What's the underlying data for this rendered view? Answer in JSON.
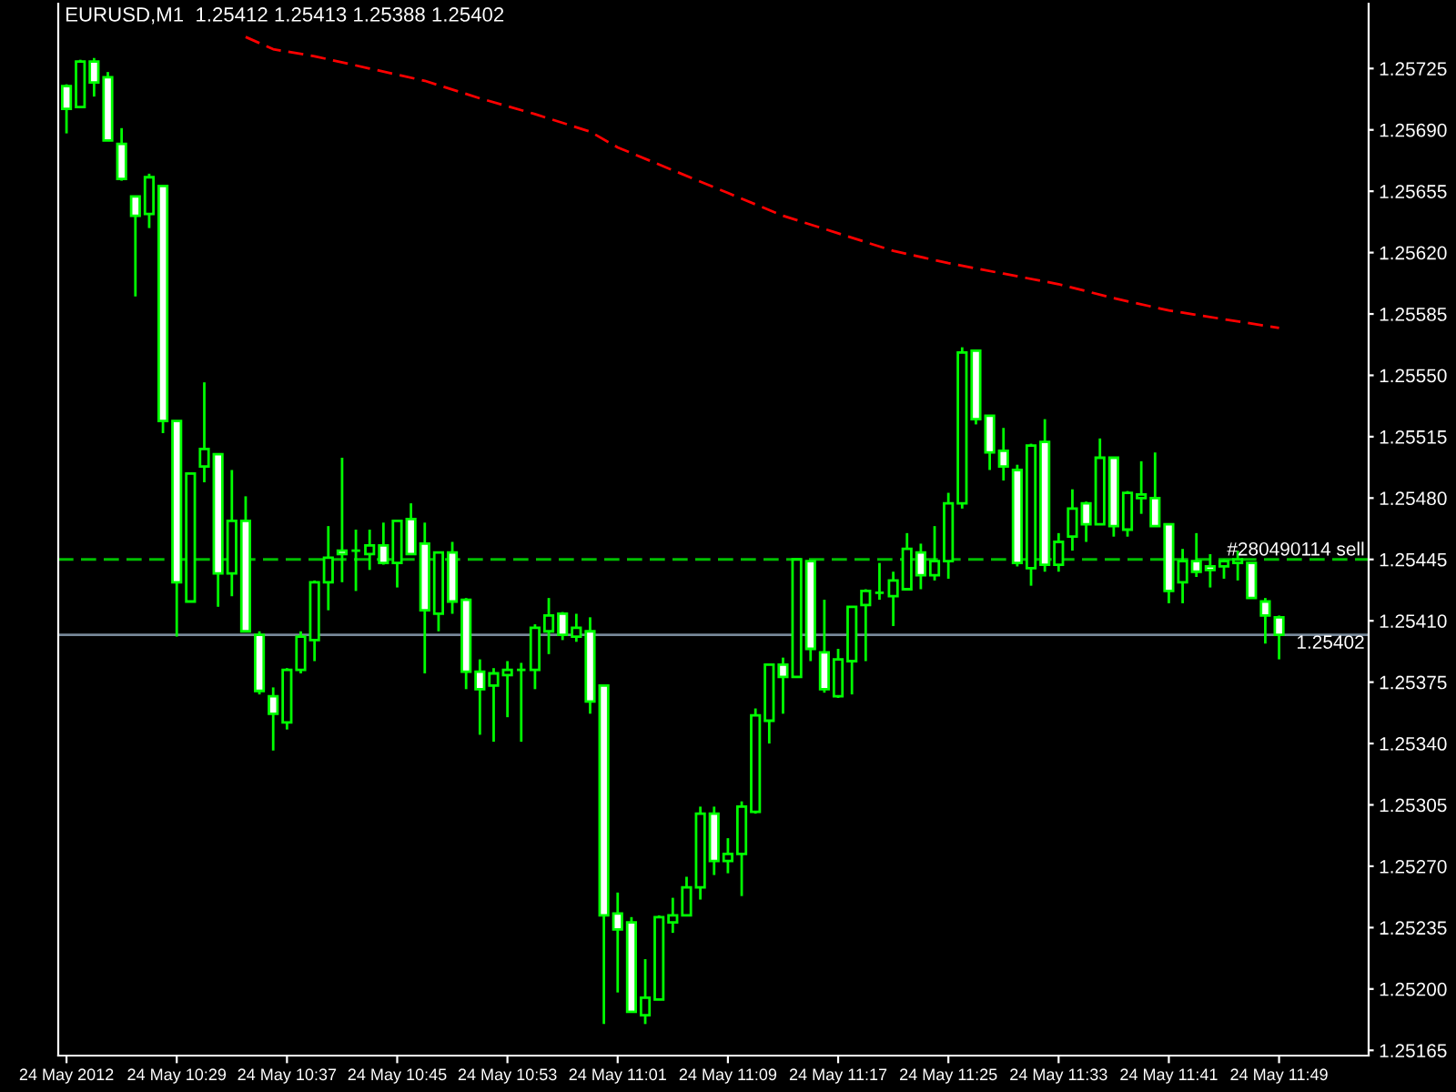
{
  "chart_data": {
    "type": "candlestick",
    "title": "EURUSD,M1  1.25412 1.25413 1.25388 1.25402",
    "categories": [
      "24 May 2012",
      null,
      null,
      null,
      null,
      null,
      null,
      null,
      "24 May 10:29",
      null,
      null,
      null,
      null,
      null,
      null,
      null,
      "24 May 10:37",
      null,
      null,
      null,
      null,
      null,
      null,
      null,
      "24 May 10:45",
      null,
      null,
      null,
      null,
      null,
      null,
      null,
      "24 May 10:53",
      null,
      null,
      null,
      null,
      null,
      null,
      null,
      "24 May 11:01",
      null,
      null,
      null,
      null,
      null,
      null,
      null,
      "24 May 11:09",
      null,
      null,
      null,
      null,
      null,
      null,
      null,
      "24 May 11:17",
      null,
      null,
      null,
      null,
      null,
      null,
      null,
      "24 May 11:25",
      null,
      null,
      null,
      null,
      null,
      null,
      null,
      "24 May 11:33",
      null,
      null,
      null,
      null,
      null,
      null,
      null,
      "24 May 11:41",
      null,
      null,
      null,
      null,
      null,
      null,
      null,
      "24 May 11:49"
    ],
    "ohlc": [
      [
        1.25715,
        1.25716,
        1.25688,
        1.25702
      ],
      [
        1.25703,
        1.2573,
        1.25703,
        1.25729
      ],
      [
        1.25729,
        1.25731,
        1.25709,
        1.25717
      ],
      [
        1.2572,
        1.25723,
        1.25684,
        1.25684
      ],
      [
        1.25682,
        1.25691,
        1.25661,
        1.25662
      ],
      [
        1.25652,
        1.25652,
        1.25595,
        1.25641
      ],
      [
        1.25642,
        1.25665,
        1.25634,
        1.25663
      ],
      [
        1.25658,
        1.25658,
        1.25517,
        1.25524
      ],
      [
        1.25524,
        1.25524,
        1.25401,
        1.25432
      ],
      [
        1.25421,
        1.25494,
        1.25421,
        1.25494
      ],
      [
        1.25498,
        1.25546,
        1.25489,
        1.25508
      ],
      [
        1.25505,
        1.25505,
        1.25418,
        1.25437
      ],
      [
        1.25437,
        1.25496,
        1.25424,
        1.25467
      ],
      [
        1.25467,
        1.25481,
        1.25404,
        1.25404
      ],
      [
        1.25402,
        1.25404,
        1.25368,
        1.2537
      ],
      [
        1.25367,
        1.25372,
        1.25336,
        1.25357
      ],
      [
        1.25352,
        1.25383,
        1.25348,
        1.25382
      ],
      [
        1.25382,
        1.25404,
        1.2538,
        1.25401
      ],
      [
        1.25399,
        1.25433,
        1.25387,
        1.25432
      ],
      [
        1.25432,
        1.25464,
        1.25416,
        1.25446
      ],
      [
        1.2545,
        1.25503,
        1.25432,
        1.25448
      ],
      [
        1.2545,
        1.25462,
        1.25427,
        1.2545
      ],
      [
        1.25448,
        1.25462,
        1.25439,
        1.25453
      ],
      [
        1.25453,
        1.25466,
        1.25442,
        1.25443
      ],
      [
        1.25443,
        1.25467,
        1.25429,
        1.25467
      ],
      [
        1.25468,
        1.25477,
        1.25448,
        1.25448
      ],
      [
        1.25454,
        1.25466,
        1.2538,
        1.25416
      ],
      [
        1.25414,
        1.25449,
        1.25404,
        1.25449
      ],
      [
        1.25449,
        1.25455,
        1.25414,
        1.25421
      ],
      [
        1.25422,
        1.25423,
        1.25371,
        1.25381
      ],
      [
        1.25381,
        1.25388,
        1.25345,
        1.25371
      ],
      [
        1.25373,
        1.25383,
        1.25341,
        1.2538
      ],
      [
        1.25379,
        1.25387,
        1.25355,
        1.25382
      ],
      [
        1.25382,
        1.25386,
        1.25341,
        1.25382
      ],
      [
        1.25382,
        1.25408,
        1.25371,
        1.25406
      ],
      [
        1.25404,
        1.25423,
        1.25391,
        1.25413
      ],
      [
        1.25414,
        1.25415,
        1.25399,
        1.25402
      ],
      [
        1.25401,
        1.25414,
        1.25398,
        1.25406
      ],
      [
        1.25404,
        1.25412,
        1.25357,
        1.25364
      ],
      [
        1.25373,
        1.25373,
        1.2518,
        1.25242
      ],
      [
        1.25243,
        1.25255,
        1.25198,
        1.25234
      ],
      [
        1.25238,
        1.25241,
        1.25187,
        1.25187
      ],
      [
        1.25185,
        1.25217,
        1.2518,
        1.25195
      ],
      [
        1.25194,
        1.25242,
        1.25194,
        1.25241
      ],
      [
        1.25238,
        1.25252,
        1.25232,
        1.25242
      ],
      [
        1.25242,
        1.25264,
        1.25242,
        1.25258
      ],
      [
        1.25258,
        1.25304,
        1.25251,
        1.253
      ],
      [
        1.253,
        1.25304,
        1.25265,
        1.25273
      ],
      [
        1.25273,
        1.25286,
        1.25266,
        1.25277
      ],
      [
        1.25277,
        1.25307,
        1.25253,
        1.25304
      ],
      [
        1.25301,
        1.2536,
        1.253,
        1.25356
      ],
      [
        1.25353,
        1.25385,
        1.2534,
        1.25385
      ],
      [
        1.25385,
        1.25389,
        1.25357,
        1.25378
      ],
      [
        1.25378,
        1.25445,
        1.25378,
        1.25445
      ],
      [
        1.25444,
        1.25444,
        1.25387,
        1.25394
      ],
      [
        1.25392,
        1.25422,
        1.25369,
        1.25371
      ],
      [
        1.25367,
        1.25394,
        1.25366,
        1.25388
      ],
      [
        1.25387,
        1.25418,
        1.25368,
        1.25418
      ],
      [
        1.25419,
        1.25428,
        1.25387,
        1.25427
      ],
      [
        1.25426,
        1.25443,
        1.25422,
        1.25426
      ],
      [
        1.25424,
        1.25438,
        1.25407,
        1.25433
      ],
      [
        1.25428,
        1.2546,
        1.25428,
        1.25451
      ],
      [
        1.25449,
        1.25454,
        1.25428,
        1.25436
      ],
      [
        1.25436,
        1.25464,
        1.25433,
        1.25444
      ],
      [
        1.25444,
        1.25483,
        1.25434,
        1.25477
      ],
      [
        1.25477,
        1.25566,
        1.25474,
        1.25563
      ],
      [
        1.25564,
        1.25564,
        1.25522,
        1.25525
      ],
      [
        1.25527,
        1.25527,
        1.25496,
        1.25506
      ],
      [
        1.25507,
        1.2552,
        1.2549,
        1.25498
      ],
      [
        1.25496,
        1.25499,
        1.25441,
        1.25443
      ],
      [
        1.2544,
        1.25511,
        1.2543,
        1.2551
      ],
      [
        1.25512,
        1.25525,
        1.25438,
        1.25442
      ],
      [
        1.25442,
        1.2546,
        1.25438,
        1.25455
      ],
      [
        1.25458,
        1.25485,
        1.2545,
        1.25474
      ],
      [
        1.25477,
        1.25478,
        1.25455,
        1.25465
      ],
      [
        1.25465,
        1.25514,
        1.25465,
        1.25503
      ],
      [
        1.25503,
        1.25503,
        1.25458,
        1.25464
      ],
      [
        1.25462,
        1.25484,
        1.25458,
        1.25483
      ],
      [
        1.2548,
        1.25501,
        1.25471,
        1.25482
      ],
      [
        1.2548,
        1.25506,
        1.25464,
        1.25464
      ],
      [
        1.25465,
        1.25465,
        1.2542,
        1.25427
      ],
      [
        1.25432,
        1.25451,
        1.2542,
        1.25444
      ],
      [
        1.25444,
        1.2546,
        1.25435,
        1.25438
      ],
      [
        1.25441,
        1.25448,
        1.25429,
        1.25439
      ],
      [
        1.25441,
        1.25445,
        1.25434,
        1.25444
      ],
      [
        1.25443,
        1.2545,
        1.25433,
        1.25445
      ],
      [
        1.25443,
        1.25443,
        1.25423,
        1.25423
      ],
      [
        1.25421,
        1.25423,
        1.25397,
        1.25413
      ],
      [
        1.25412,
        1.25413,
        1.25388,
        1.25402
      ]
    ],
    "series": [
      {
        "type": "line",
        "color": "#ff0000",
        "line_style": "dashed",
        "values": [
          null,
          null,
          null,
          null,
          null,
          null,
          null,
          null,
          null,
          null,
          null,
          null,
          null,
          1.25743,
          null,
          1.25736,
          null,
          null,
          1.25732,
          null,
          null,
          null,
          1.25725,
          null,
          null,
          null,
          1.25718,
          null,
          null,
          null,
          1.25708,
          null,
          null,
          null,
          1.25699,
          null,
          null,
          null,
          1.25689,
          null,
          1.2568,
          null,
          null,
          null,
          1.25667,
          null,
          null,
          null,
          1.25654,
          null,
          null,
          null,
          1.25641,
          null,
          null,
          null,
          1.25631,
          null,
          null,
          null,
          1.25621,
          null,
          null,
          null,
          1.25614,
          null,
          null,
          null,
          1.25608,
          null,
          null,
          null,
          1.25602,
          null,
          null,
          null,
          1.25594,
          null,
          null,
          null,
          1.25587,
          null,
          null,
          null,
          1.25582,
          null,
          null,
          null,
          1.25577
        ]
      }
    ],
    "ylim": [
      1.25162,
      1.25762
    ],
    "yticks": [
      {
        "value": 1.25165,
        "label": "1.25165"
      },
      {
        "value": 1.252,
        "label": "1.25200"
      },
      {
        "value": 1.25235,
        "label": "1.25235"
      },
      {
        "value": 1.2527,
        "label": "1.25270"
      },
      {
        "value": 1.25305,
        "label": "1.25305"
      },
      {
        "value": 1.2534,
        "label": "1.25340"
      },
      {
        "value": 1.25375,
        "label": "1.25375"
      },
      {
        "value": 1.2541,
        "label": "1.25410"
      },
      {
        "value": 1.25445,
        "label": "1.25445"
      },
      {
        "value": 1.2548,
        "label": "1.25480"
      },
      {
        "value": 1.25515,
        "label": "1.25515"
      },
      {
        "value": 1.2555,
        "label": "1.25550"
      },
      {
        "value": 1.25585,
        "label": "1.25585"
      },
      {
        "value": 1.2562,
        "label": "1.25620"
      },
      {
        "value": 1.25655,
        "label": "1.25655"
      },
      {
        "value": 1.2569,
        "label": "1.25690"
      },
      {
        "value": 1.25725,
        "label": "1.25725"
      }
    ],
    "ref_lines": [
      {
        "axis": "y",
        "value": 1.25445,
        "label": "#280490114 sell",
        "color": "#00c000",
        "line_style": "dashed"
      },
      {
        "axis": "y",
        "value": 1.25402,
        "label": "1.25402",
        "color": "#778899",
        "line_style": "solid"
      }
    ]
  }
}
